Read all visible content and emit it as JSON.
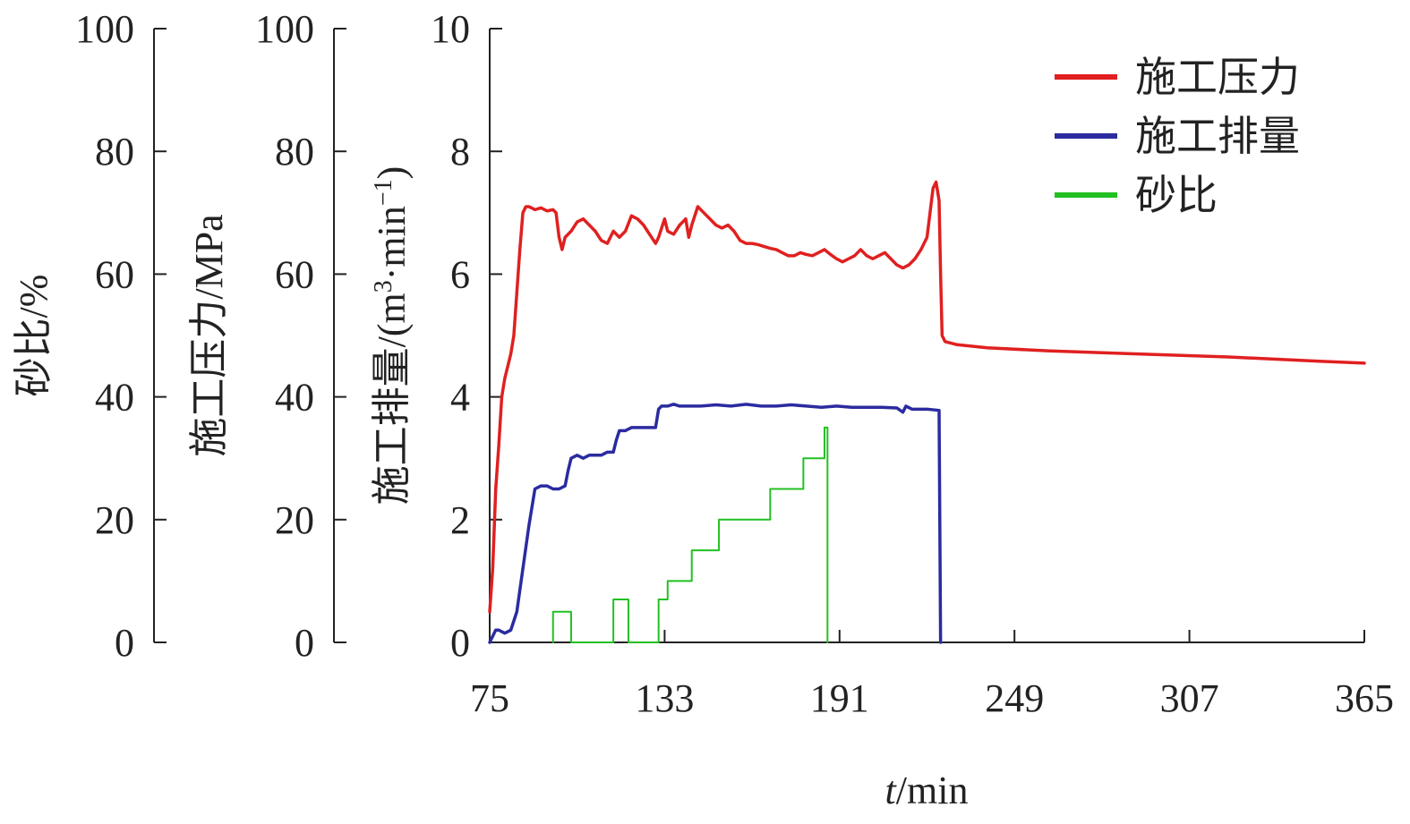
{
  "chart_data": {
    "type": "line",
    "x_axis": {
      "label_italic": "t",
      "label_rest": "/min",
      "range": [
        75,
        365
      ],
      "ticks": [
        "75",
        "133",
        "191",
        "249",
        "307",
        "365"
      ]
    },
    "y_axes": [
      {
        "id": "sand",
        "label": "砂比/%",
        "range": [
          0,
          100
        ],
        "ticks": [
          "0",
          "20",
          "40",
          "60",
          "80",
          "100"
        ]
      },
      {
        "id": "pressure",
        "label": "施工压力/MPa",
        "range": [
          0,
          100
        ],
        "ticks": [
          "0",
          "20",
          "40",
          "60",
          "80",
          "100"
        ]
      },
      {
        "id": "rate",
        "label_prefix": "施工排量/(m",
        "label_sup1": "3",
        "label_mid": "·min",
        "label_sup2": "−1",
        "label_suffix": ")",
        "range": [
          0,
          10
        ],
        "ticks": [
          "0",
          "2",
          "4",
          "6",
          "8",
          "10"
        ]
      }
    ],
    "legend": {
      "placement": "top-right",
      "items": [
        {
          "name": "施工压力",
          "color": "#e02020"
        },
        {
          "name": "施工排量",
          "color": "#2b2ba0"
        },
        {
          "name": "砂比",
          "color": "#22c022"
        }
      ]
    },
    "series": [
      {
        "name": "施工压力",
        "axis": "pressure",
        "color": "#e02020",
        "points": [
          [
            75,
            5
          ],
          [
            76,
            12
          ],
          [
            77,
            25
          ],
          [
            78,
            32
          ],
          [
            79,
            40
          ],
          [
            80,
            43
          ],
          [
            81,
            45
          ],
          [
            82,
            47
          ],
          [
            83,
            50
          ],
          [
            84,
            57
          ],
          [
            85,
            64
          ],
          [
            86,
            70
          ],
          [
            87,
            71
          ],
          [
            88,
            71
          ],
          [
            90,
            70.5
          ],
          [
            92,
            70.8
          ],
          [
            94,
            70.3
          ],
          [
            96,
            70.5
          ],
          [
            97,
            70
          ],
          [
            98,
            66
          ],
          [
            99,
            64
          ],
          [
            100,
            66
          ],
          [
            102,
            67
          ],
          [
            104,
            68.5
          ],
          [
            106,
            69
          ],
          [
            108,
            68
          ],
          [
            110,
            67
          ],
          [
            112,
            65.5
          ],
          [
            114,
            65
          ],
          [
            116,
            67
          ],
          [
            118,
            66
          ],
          [
            120,
            67
          ],
          [
            122,
            69.5
          ],
          [
            124,
            69
          ],
          [
            126,
            68
          ],
          [
            128,
            66.5
          ],
          [
            130,
            65
          ],
          [
            131,
            66
          ],
          [
            133,
            69
          ],
          [
            134,
            67
          ],
          [
            136,
            66.5
          ],
          [
            138,
            68
          ],
          [
            140,
            69
          ],
          [
            141,
            66
          ],
          [
            142,
            68
          ],
          [
            144,
            71
          ],
          [
            146,
            70
          ],
          [
            148,
            69
          ],
          [
            150,
            68
          ],
          [
            152,
            67.5
          ],
          [
            154,
            68
          ],
          [
            156,
            67
          ],
          [
            158,
            65.5
          ],
          [
            160,
            65
          ],
          [
            162,
            65
          ],
          [
            164,
            64.8
          ],
          [
            166,
            64.5
          ],
          [
            168,
            64.2
          ],
          [
            170,
            64
          ],
          [
            172,
            63.5
          ],
          [
            174,
            63
          ],
          [
            176,
            63
          ],
          [
            178,
            63.5
          ],
          [
            180,
            63.2
          ],
          [
            182,
            63
          ],
          [
            184,
            63.5
          ],
          [
            186,
            64
          ],
          [
            188,
            63.2
          ],
          [
            190,
            62.5
          ],
          [
            192,
            62
          ],
          [
            194,
            62.5
          ],
          [
            196,
            63
          ],
          [
            198,
            64
          ],
          [
            200,
            63
          ],
          [
            202,
            62.5
          ],
          [
            204,
            63
          ],
          [
            206,
            63.5
          ],
          [
            208,
            62.5
          ],
          [
            210,
            61.5
          ],
          [
            212,
            61
          ],
          [
            214,
            61.5
          ],
          [
            215,
            62
          ],
          [
            216,
            62.5
          ],
          [
            218,
            64
          ],
          [
            220,
            66
          ],
          [
            221,
            70
          ],
          [
            222,
            74
          ],
          [
            223,
            75
          ],
          [
            224,
            72
          ],
          [
            224.5,
            60
          ],
          [
            225,
            50
          ],
          [
            226,
            49
          ],
          [
            230,
            48.5
          ],
          [
            240,
            48
          ],
          [
            260,
            47.5
          ],
          [
            290,
            47
          ],
          [
            320,
            46.5
          ],
          [
            350,
            45.8
          ],
          [
            365,
            45.5
          ]
        ]
      },
      {
        "name": "施工排量",
        "axis": "rate",
        "color": "#2b2ba0",
        "points": [
          [
            75,
            0
          ],
          [
            76,
            0.1
          ],
          [
            77,
            0.2
          ],
          [
            78,
            0.2
          ],
          [
            80,
            0.15
          ],
          [
            82,
            0.2
          ],
          [
            84,
            0.5
          ],
          [
            86,
            1.2
          ],
          [
            88,
            1.9
          ],
          [
            90,
            2.5
          ],
          [
            92,
            2.55
          ],
          [
            94,
            2.55
          ],
          [
            96,
            2.5
          ],
          [
            98,
            2.5
          ],
          [
            100,
            2.55
          ],
          [
            101,
            2.8
          ],
          [
            102,
            3.0
          ],
          [
            104,
            3.05
          ],
          [
            106,
            3.0
          ],
          [
            108,
            3.05
          ],
          [
            110,
            3.05
          ],
          [
            112,
            3.05
          ],
          [
            114,
            3.1
          ],
          [
            116,
            3.1
          ],
          [
            117,
            3.3
          ],
          [
            118,
            3.45
          ],
          [
            120,
            3.45
          ],
          [
            122,
            3.5
          ],
          [
            124,
            3.5
          ],
          [
            126,
            3.5
          ],
          [
            128,
            3.5
          ],
          [
            130,
            3.5
          ],
          [
            131,
            3.8
          ],
          [
            132,
            3.85
          ],
          [
            134,
            3.85
          ],
          [
            136,
            3.88
          ],
          [
            138,
            3.85
          ],
          [
            140,
            3.85
          ],
          [
            145,
            3.85
          ],
          [
            150,
            3.87
          ],
          [
            155,
            3.85
          ],
          [
            160,
            3.88
          ],
          [
            165,
            3.85
          ],
          [
            170,
            3.85
          ],
          [
            175,
            3.87
          ],
          [
            180,
            3.85
          ],
          [
            185,
            3.83
          ],
          [
            190,
            3.85
          ],
          [
            195,
            3.83
          ],
          [
            200,
            3.83
          ],
          [
            205,
            3.83
          ],
          [
            210,
            3.82
          ],
          [
            212,
            3.75
          ],
          [
            213,
            3.85
          ],
          [
            215,
            3.8
          ],
          [
            220,
            3.8
          ],
          [
            224,
            3.78
          ],
          [
            224.5,
            0
          ]
        ]
      },
      {
        "name": "砂比",
        "axis": "sand",
        "color": "#22c022",
        "points": [
          [
            96,
            0
          ],
          [
            96,
            5
          ],
          [
            102,
            5
          ],
          [
            102,
            0
          ],
          [
            116,
            0
          ],
          [
            116,
            7
          ],
          [
            121,
            7
          ],
          [
            121,
            0
          ],
          [
            131,
            0
          ],
          [
            131,
            7
          ],
          [
            134,
            7
          ],
          [
            134,
            10
          ],
          [
            142,
            10
          ],
          [
            142,
            15
          ],
          [
            151,
            15
          ],
          [
            151,
            20
          ],
          [
            168,
            20
          ],
          [
            168,
            25
          ],
          [
            179,
            25
          ],
          [
            179,
            30
          ],
          [
            186,
            30
          ],
          [
            186,
            35
          ],
          [
            187,
            35
          ],
          [
            187,
            0
          ]
        ]
      }
    ]
  }
}
